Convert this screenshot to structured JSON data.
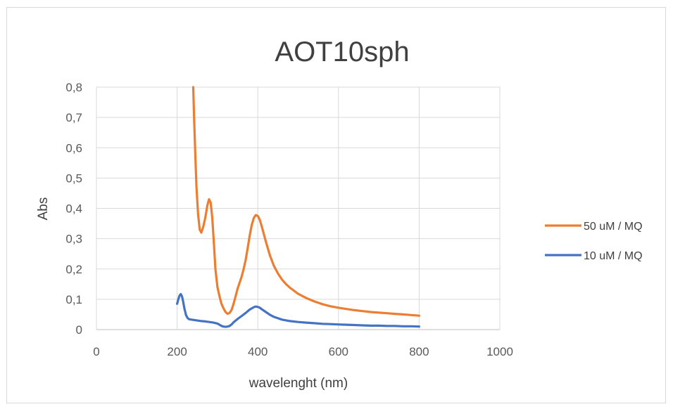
{
  "chart_data": {
    "type": "scatter",
    "title": "AOT10sph",
    "xlabel": "wavelenght (nm)",
    "ylabel": "Abs",
    "xlim": [
      0,
      1000
    ],
    "ylim": [
      0,
      0.8
    ],
    "x_ticks": [
      0,
      200,
      400,
      600,
      800,
      1000
    ],
    "y_ticks": [
      "0",
      "0,1",
      "0,2",
      "0,3",
      "0,4",
      "0,5",
      "0,6",
      "0,7",
      "0,8"
    ],
    "grid": true,
    "legend_position": "right",
    "series": [
      {
        "name": "50 uM / MQ",
        "color": "#ED7D31",
        "x": [
          240,
          242,
          245,
          248,
          252,
          256,
          260,
          265,
          270,
          275,
          279,
          283,
          287,
          291,
          295,
          300,
          305,
          310,
          315,
          320,
          325,
          330,
          335,
          340,
          345,
          350,
          355,
          360,
          365,
          370,
          375,
          380,
          385,
          390,
          395,
          400,
          405,
          410,
          415,
          420,
          430,
          440,
          450,
          460,
          470,
          480,
          500,
          520,
          540,
          560,
          580,
          600,
          620,
          640,
          660,
          680,
          700,
          720,
          740,
          760,
          780,
          800
        ],
        "y": [
          0.8,
          0.7,
          0.58,
          0.47,
          0.38,
          0.33,
          0.32,
          0.34,
          0.37,
          0.41,
          0.43,
          0.42,
          0.37,
          0.29,
          0.2,
          0.14,
          0.11,
          0.085,
          0.07,
          0.058,
          0.052,
          0.055,
          0.065,
          0.085,
          0.11,
          0.135,
          0.155,
          0.175,
          0.2,
          0.23,
          0.27,
          0.31,
          0.345,
          0.368,
          0.378,
          0.375,
          0.362,
          0.34,
          0.315,
          0.29,
          0.245,
          0.21,
          0.185,
          0.165,
          0.15,
          0.138,
          0.118,
          0.104,
          0.093,
          0.084,
          0.077,
          0.072,
          0.068,
          0.064,
          0.061,
          0.058,
          0.056,
          0.054,
          0.052,
          0.05,
          0.048,
          0.046
        ]
      },
      {
        "name": "10 uM / MQ",
        "color": "#4472C4",
        "x": [
          200,
          203,
          206,
          209,
          212,
          215,
          218,
          222,
          226,
          230,
          240,
          250,
          260,
          270,
          280,
          290,
          300,
          305,
          310,
          315,
          320,
          325,
          330,
          335,
          340,
          350,
          360,
          370,
          380,
          390,
          395,
          400,
          405,
          410,
          420,
          430,
          440,
          460,
          480,
          500,
          520,
          540,
          560,
          580,
          600,
          620,
          640,
          660,
          680,
          700,
          720,
          740,
          760,
          780,
          800
        ],
        "y": [
          0.085,
          0.1,
          0.112,
          0.117,
          0.11,
          0.092,
          0.07,
          0.048,
          0.038,
          0.034,
          0.032,
          0.03,
          0.028,
          0.027,
          0.025,
          0.023,
          0.02,
          0.016,
          0.012,
          0.01,
          0.009,
          0.01,
          0.012,
          0.017,
          0.024,
          0.035,
          0.045,
          0.055,
          0.066,
          0.074,
          0.076,
          0.075,
          0.072,
          0.067,
          0.058,
          0.049,
          0.042,
          0.033,
          0.028,
          0.025,
          0.023,
          0.021,
          0.019,
          0.018,
          0.017,
          0.016,
          0.015,
          0.014,
          0.013,
          0.013,
          0.012,
          0.012,
          0.011,
          0.011,
          0.01
        ]
      }
    ]
  }
}
